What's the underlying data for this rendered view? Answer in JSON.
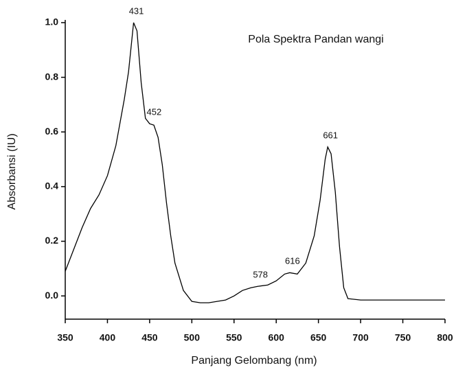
{
  "chart_data": {
    "type": "line",
    "title": "Pola Spektra Pandan wangi",
    "x_label": "Panjang Gelombang (nm)",
    "y_label": "Absorbansi (IU)",
    "x": [
      350,
      360,
      370,
      380,
      390,
      400,
      410,
      420,
      425,
      431,
      435,
      440,
      445,
      450,
      455,
      460,
      465,
      470,
      475,
      480,
      490,
      500,
      510,
      520,
      530,
      540,
      550,
      560,
      570,
      578,
      590,
      600,
      610,
      616,
      625,
      635,
      645,
      652,
      658,
      661,
      665,
      670,
      675,
      680,
      685,
      700,
      750,
      800
    ],
    "values": [
      0.09,
      0.17,
      0.25,
      0.32,
      0.37,
      0.44,
      0.55,
      0.72,
      0.82,
      1.0,
      0.97,
      0.78,
      0.65,
      0.63,
      0.625,
      0.58,
      0.48,
      0.34,
      0.22,
      0.12,
      0.02,
      -0.02,
      -0.025,
      -0.025,
      -0.02,
      -0.015,
      0.0,
      0.02,
      0.03,
      0.035,
      0.04,
      0.055,
      0.08,
      0.085,
      0.08,
      0.12,
      0.22,
      0.35,
      0.5,
      0.545,
      0.52,
      0.38,
      0.18,
      0.03,
      -0.01,
      -0.015,
      -0.015,
      -0.015
    ],
    "color": "#000000",
    "xlim": [
      350,
      800
    ],
    "ylim": [
      -0.085,
      1.01
    ],
    "xticks": [
      350,
      400,
      450,
      500,
      550,
      600,
      650,
      700,
      750,
      800
    ],
    "yticks": [
      {
        "value": 0,
        "label": "0.0"
      },
      0.2,
      0.4,
      0.6,
      0.8,
      {
        "value": 1,
        "label": "1.0"
      }
    ],
    "annotations": [
      {
        "label": "431",
        "x": 431,
        "y": 1.0
      },
      {
        "label": "452",
        "x": 452,
        "y": 0.63
      },
      {
        "label": "578",
        "x": 578,
        "y": 0.035
      },
      {
        "label": "616",
        "x": 616,
        "y": 0.085
      },
      {
        "label": "661",
        "x": 661,
        "y": 0.545
      }
    ]
  }
}
